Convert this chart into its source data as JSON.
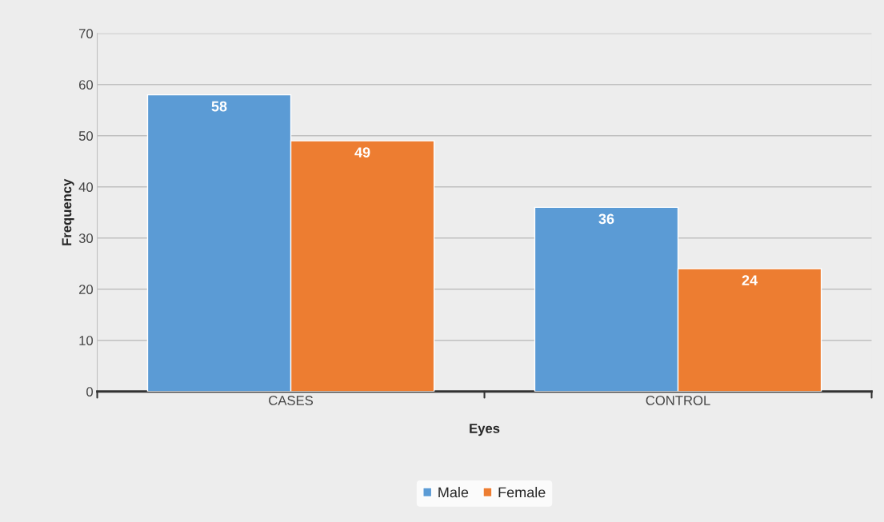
{
  "chart_data": {
    "type": "bar",
    "xlabel": "Eyes",
    "ylabel": "Frequency",
    "categories": [
      "CASES",
      "CONTROL"
    ],
    "series": [
      {
        "name": "Male",
        "color": "#5b9bd5",
        "values": [
          58,
          36
        ]
      },
      {
        "name": "Female",
        "color": "#ed7d31",
        "values": [
          49,
          24
        ]
      }
    ],
    "ylim": [
      0,
      70
    ],
    "yticks": [
      0,
      10,
      20,
      30,
      40,
      50,
      60,
      70
    ],
    "grid": "y",
    "legend": "bottom",
    "data_labels": true
  }
}
